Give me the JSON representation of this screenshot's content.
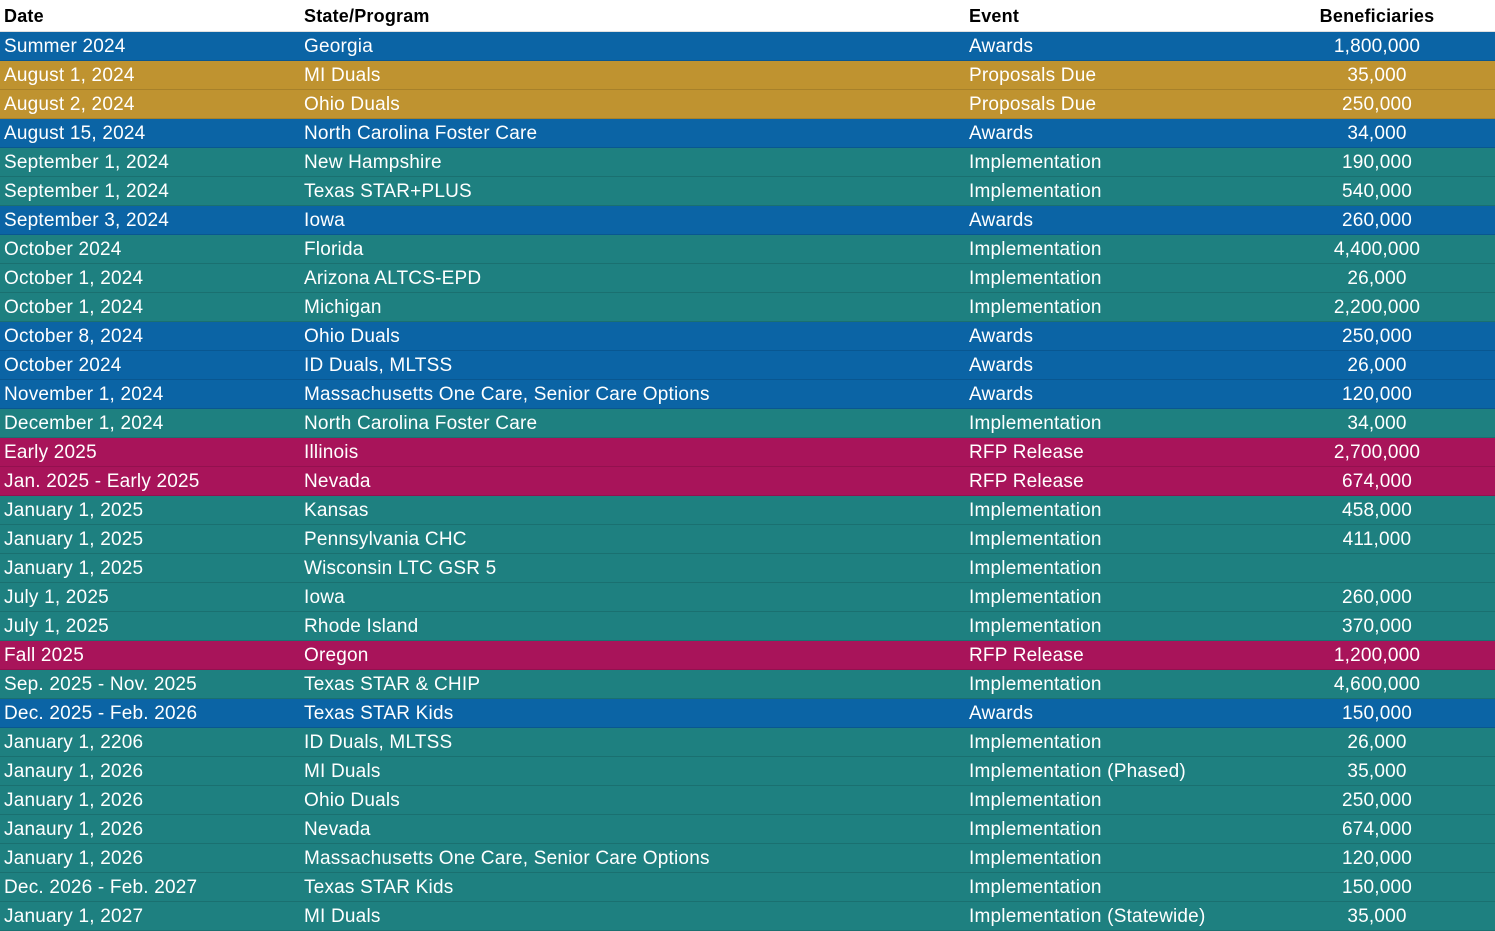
{
  "table": {
    "header": [
      "Date",
      "State/Program",
      "Event",
      "Beneficiaries"
    ],
    "rows": [
      [
        "Summer 2024",
        "Georgia",
        "Awards",
        "1,800,000"
      ],
      [
        "August 1, 2024",
        "MI Duals",
        "Proposals Due",
        "35,000"
      ],
      [
        "August 2, 2024",
        "Ohio Duals",
        "Proposals Due",
        "250,000"
      ],
      [
        "August 15, 2024",
        "North Carolina Foster Care",
        "Awards",
        "34,000"
      ],
      [
        "September 1, 2024",
        "New Hampshire",
        "Implementation",
        "190,000"
      ],
      [
        "September 1, 2024",
        "Texas STAR+PLUS",
        "Implementation",
        "540,000"
      ],
      [
        "September 3, 2024",
        "Iowa",
        "Awards",
        "260,000"
      ],
      [
        "October 2024",
        "Florida",
        "Implementation",
        "4,400,000"
      ],
      [
        "October 1, 2024",
        "Arizona ALTCS-EPD",
        "Implementation",
        "26,000"
      ],
      [
        "October 1, 2024",
        "Michigan",
        "Implementation",
        "2,200,000"
      ],
      [
        "October 8, 2024",
        "Ohio Duals",
        "Awards",
        "250,000"
      ],
      [
        "October 2024",
        "ID Duals, MLTSS",
        "Awards",
        "26,000"
      ],
      [
        "November 1, 2024",
        "Massachusetts One Care, Senior Care Options",
        "Awards",
        "120,000"
      ],
      [
        "December 1, 2024",
        "North Carolina Foster Care",
        "Implementation",
        "34,000"
      ],
      [
        "Early 2025",
        "Illinois",
        "RFP Release",
        "2,700,000"
      ],
      [
        "Jan. 2025 - Early 2025",
        "Nevada",
        "RFP Release",
        "674,000"
      ],
      [
        "January 1, 2025",
        "Kansas",
        "Implementation",
        "458,000"
      ],
      [
        "January 1, 2025",
        "Pennsylvania CHC",
        "Implementation",
        "411,000"
      ],
      [
        "January 1, 2025",
        "Wisconsin LTC GSR 5",
        "Implementation",
        null
      ],
      [
        "July 1, 2025",
        "Iowa",
        "Implementation",
        "260,000"
      ],
      [
        "July 1, 2025",
        "Rhode Island",
        "Implementation",
        "370,000"
      ],
      [
        "Fall 2025",
        "Oregon",
        "RFP Release",
        "1,200,000"
      ],
      [
        "Sep. 2025 - Nov. 2025",
        "Texas STAR & CHIP",
        "Implementation",
        "4,600,000"
      ],
      [
        "Dec. 2025 - Feb. 2026",
        "Texas STAR Kids",
        "Awards",
        "150,000"
      ],
      [
        "January 1, 2206",
        "ID Duals, MLTSS",
        "Implementation",
        "26,000"
      ],
      [
        "Janaury 1, 2026",
        "MI Duals",
        "Implementation (Phased)",
        "35,000"
      ],
      [
        "January 1, 2026",
        "Ohio Duals",
        "Implementation",
        "250,000"
      ],
      [
        "Janaury 1, 2026",
        "Nevada",
        "Implementation",
        "674,000"
      ],
      [
        "January 1, 2026",
        "Massachusetts One Care, Senior Care Options",
        "Implementation",
        "120,000"
      ],
      [
        "Dec. 2026 - Feb. 2027",
        "Texas STAR Kids",
        "Implementation",
        "150,000"
      ],
      [
        "January 1, 2027",
        "MI Duals",
        "Implementation (Statewide)",
        "35,000"
      ]
    ],
    "row_colors": [
      "#0b64a5",
      "#bf9330",
      "#bf9330",
      "#0b64a5",
      "#1e8080",
      "#1e8080",
      "#0b64a5",
      "#1e8080",
      "#1e8080",
      "#1e8080",
      "#0b64a5",
      "#0b64a5",
      "#0b64a5",
      "#1e8080",
      "#a8145a",
      "#a8145a",
      "#1e8080",
      "#1e8080",
      "#1e8080",
      "#1e8080",
      "#1e8080",
      "#a8145a",
      "#1e8080",
      "#0b64a5",
      "#1e8080",
      "#1e8080",
      "#1e8080",
      "#1e8080",
      "#1e8080",
      "#1e8080",
      "#1e8080"
    ]
  }
}
